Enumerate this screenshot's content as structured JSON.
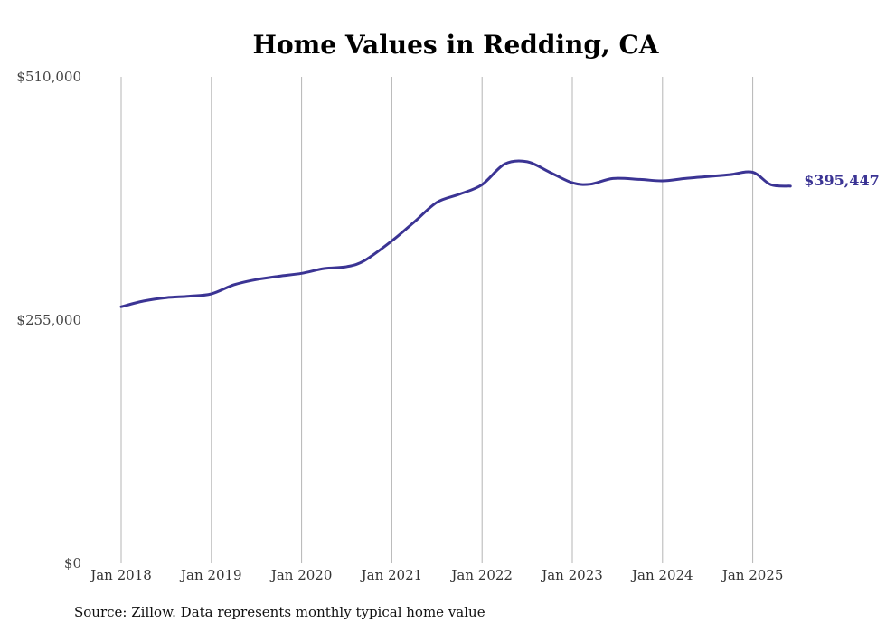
{
  "chart_data": {
    "type": "line",
    "title": "Home Values in Redding, CA",
    "xlabel": "",
    "ylabel": "",
    "ylim": [
      0,
      510000
    ],
    "y_ticks": [
      {
        "value": 0,
        "label": "$0"
      },
      {
        "value": 255000,
        "label": "$255,000"
      },
      {
        "value": 510000,
        "label": "$510,000"
      }
    ],
    "x_ticks": [
      {
        "value": 2018.0,
        "label": "Jan 2018"
      },
      {
        "value": 2019.0,
        "label": "Jan 2019"
      },
      {
        "value": 2020.0,
        "label": "Jan 2020"
      },
      {
        "value": 2021.0,
        "label": "Jan 2021"
      },
      {
        "value": 2022.0,
        "label": "Jan 2022"
      },
      {
        "value": 2023.0,
        "label": "Jan 2023"
      },
      {
        "value": 2024.0,
        "label": "Jan 2024"
      },
      {
        "value": 2025.0,
        "label": "Jan 2025"
      }
    ],
    "xlim": [
      2018.0,
      2025.417
    ],
    "grid": {
      "vertical": true,
      "horizontal": false
    },
    "legend": "none",
    "series": [
      {
        "color": "#3b3494",
        "end_label": "$395,447",
        "x": [
          2018.0,
          2018.25,
          2018.5,
          2018.75,
          2019.0,
          2019.25,
          2019.5,
          2019.75,
          2020.0,
          2020.25,
          2020.5,
          2020.7,
          2021.0,
          2021.25,
          2021.5,
          2021.75,
          2022.0,
          2022.25,
          2022.5,
          2022.75,
          2023.0,
          2023.2,
          2023.45,
          2023.75,
          2024.0,
          2024.25,
          2024.5,
          2024.75,
          2025.0,
          2025.2,
          2025.417
        ],
        "y": [
          269000,
          275000,
          278500,
          280000,
          282500,
          292000,
          297500,
          301000,
          304000,
          309000,
          311000,
          317500,
          338000,
          358000,
          378500,
          387000,
          397000,
          418500,
          421000,
          410000,
          399000,
          397500,
          403500,
          402500,
          401000,
          403500,
          405500,
          407500,
          410000,
          397000,
          395447
        ]
      }
    ]
  },
  "footer": {
    "source": "Source: Zillow. Data represents monthly typical home value"
  }
}
